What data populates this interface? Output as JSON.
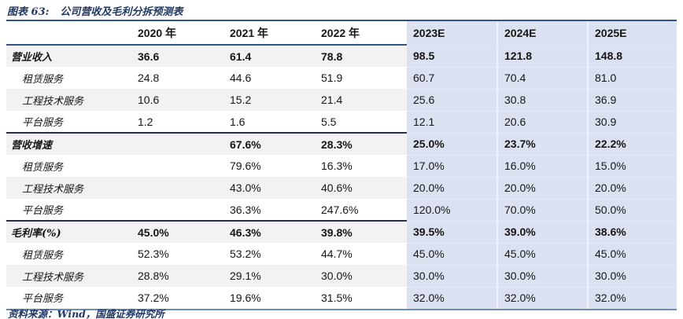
{
  "title": {
    "figure_label": "图表 63:",
    "text": "公司营收及毛利分拆预测表"
  },
  "source_note": "资料来源：Wind，国盛证券研究所",
  "colors": {
    "accent_blue": "#1f3864",
    "forecast_bg": "#dbe1f0",
    "shaded_row_bg": "#f2f2f2",
    "header_rule": "#31548f",
    "section_rule": "#232e4a",
    "bottom_rule": "#6a8cc0"
  },
  "table": {
    "columns": [
      "",
      "2020 年",
      "2021 年",
      "2022 年",
      "2023E",
      "2024E",
      "2025E"
    ],
    "forecast_from_index": 4,
    "rows": [
      {
        "label": "营业收入",
        "bold": true,
        "indent": false,
        "shaded": true,
        "section_start": false,
        "values": [
          "36.6",
          "61.4",
          "78.8",
          "98.5",
          "121.8",
          "148.8"
        ]
      },
      {
        "label": "租赁服务",
        "bold": false,
        "indent": true,
        "shaded": false,
        "section_start": false,
        "values": [
          "24.8",
          "44.6",
          "51.9",
          "60.7",
          "70.4",
          "81.0"
        ]
      },
      {
        "label": "工程技术服务",
        "bold": false,
        "indent": true,
        "shaded": true,
        "section_start": false,
        "values": [
          "10.6",
          "15.2",
          "21.4",
          "25.6",
          "30.8",
          "36.9"
        ]
      },
      {
        "label": "平台服务",
        "bold": false,
        "indent": true,
        "shaded": false,
        "section_start": false,
        "values": [
          "1.2",
          "1.6",
          "5.5",
          "12.1",
          "20.6",
          "30.9"
        ]
      },
      {
        "label": "营收增速",
        "bold": true,
        "indent": false,
        "shaded": true,
        "section_start": true,
        "values": [
          "",
          "67.6%",
          "28.3%",
          "25.0%",
          "23.7%",
          "22.2%"
        ]
      },
      {
        "label": "租赁服务",
        "bold": false,
        "indent": true,
        "shaded": false,
        "section_start": false,
        "values": [
          "",
          "79.6%",
          "16.3%",
          "17.0%",
          "16.0%",
          "15.0%"
        ]
      },
      {
        "label": "工程技术服务",
        "bold": false,
        "indent": true,
        "shaded": true,
        "section_start": false,
        "values": [
          "",
          "43.0%",
          "40.6%",
          "20.0%",
          "20.0%",
          "20.0%"
        ]
      },
      {
        "label": "平台服务",
        "bold": false,
        "indent": true,
        "shaded": false,
        "section_start": false,
        "values": [
          "",
          "36.3%",
          "247.6%",
          "120.0%",
          "70.0%",
          "50.0%"
        ]
      },
      {
        "label": "毛利率(%)",
        "bold": true,
        "indent": false,
        "shaded": true,
        "section_start": true,
        "values": [
          "45.0%",
          "46.3%",
          "39.8%",
          "39.5%",
          "39.0%",
          "38.6%"
        ]
      },
      {
        "label": "租赁服务",
        "bold": false,
        "indent": true,
        "shaded": false,
        "section_start": false,
        "values": [
          "52.3%",
          "53.2%",
          "44.7%",
          "45.0%",
          "45.0%",
          "45.0%"
        ]
      },
      {
        "label": "工程技术服务",
        "bold": false,
        "indent": true,
        "shaded": true,
        "section_start": false,
        "values": [
          "28.8%",
          "29.1%",
          "30.0%",
          "30.0%",
          "30.0%",
          "30.0%"
        ]
      },
      {
        "label": "平台服务",
        "bold": false,
        "indent": true,
        "shaded": false,
        "section_start": false,
        "values": [
          "37.2%",
          "19.6%",
          "31.5%",
          "32.0%",
          "32.0%",
          "32.0%"
        ]
      }
    ]
  }
}
